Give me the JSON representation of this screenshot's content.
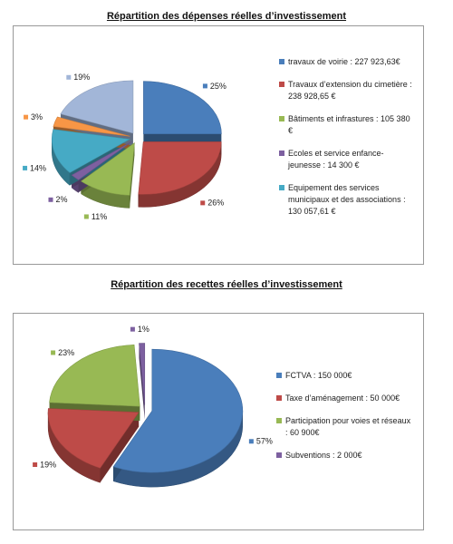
{
  "chart_data": [
    {
      "type": "pie",
      "title": "Répartition des dépenses réelles d’investissement",
      "categories": [
        "travaux de voirie : 227 923,63€",
        "Travaux d’extension du cimetière : 238 928,65 €",
        "Bâtiments et infrastures : 105 380 €",
        "Ecoles et service enfance-jeunesse : 14 300 €",
        "Equipement des services municipaux et des associations : 130 057,61 €",
        null,
        null
      ],
      "values": [
        25,
        26,
        11,
        2,
        14,
        3,
        19
      ],
      "value_labels": [
        "25%",
        "26%",
        "11%",
        "2%",
        "14%",
        "3%",
        "19%"
      ],
      "colors": [
        "#4a7ebb",
        "#be4b48",
        "#98b954",
        "#7d60a0",
        "#46aac5",
        "#f79646",
        "#a2b6d8"
      ]
    },
    {
      "type": "pie",
      "title": "Répartition des recettes réelles d’investissement",
      "categories": [
        "FCTVA : 150 000€",
        "Taxe d’aménagement : 50 000€",
        "Participation pour voies et réseaux : 60 900€",
        "Subventions : 2 000€"
      ],
      "values": [
        57,
        19,
        23,
        1
      ],
      "value_labels": [
        "57%",
        "19%",
        "23%",
        "1%"
      ],
      "colors": [
        "#4a7ebb",
        "#be4b48",
        "#98b954",
        "#7d60a0"
      ]
    }
  ]
}
